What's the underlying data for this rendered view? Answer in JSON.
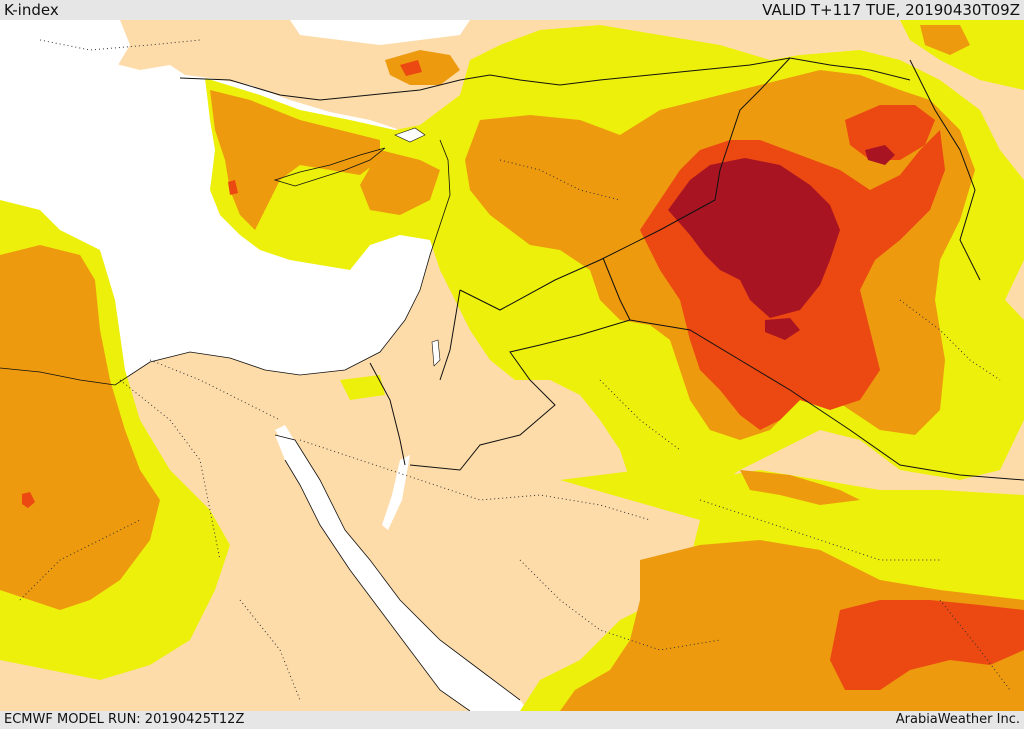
{
  "header": {
    "parameter": "K-index",
    "valid_time": "VALID T+117 TUE, 20190430T09Z"
  },
  "footer": {
    "model_run": "ECMWF MODEL RUN: 20190425T12Z",
    "credit": "ArabiaWeather Inc."
  },
  "colors": {
    "sea": "#ffffff",
    "land_base": "#fddcaa",
    "k_level_1": "#ecf00a",
    "k_level_2": "#ed9a0e",
    "k_level_3": "#ec4812",
    "k_level_4": "#a81422",
    "border": "#111111"
  }
}
